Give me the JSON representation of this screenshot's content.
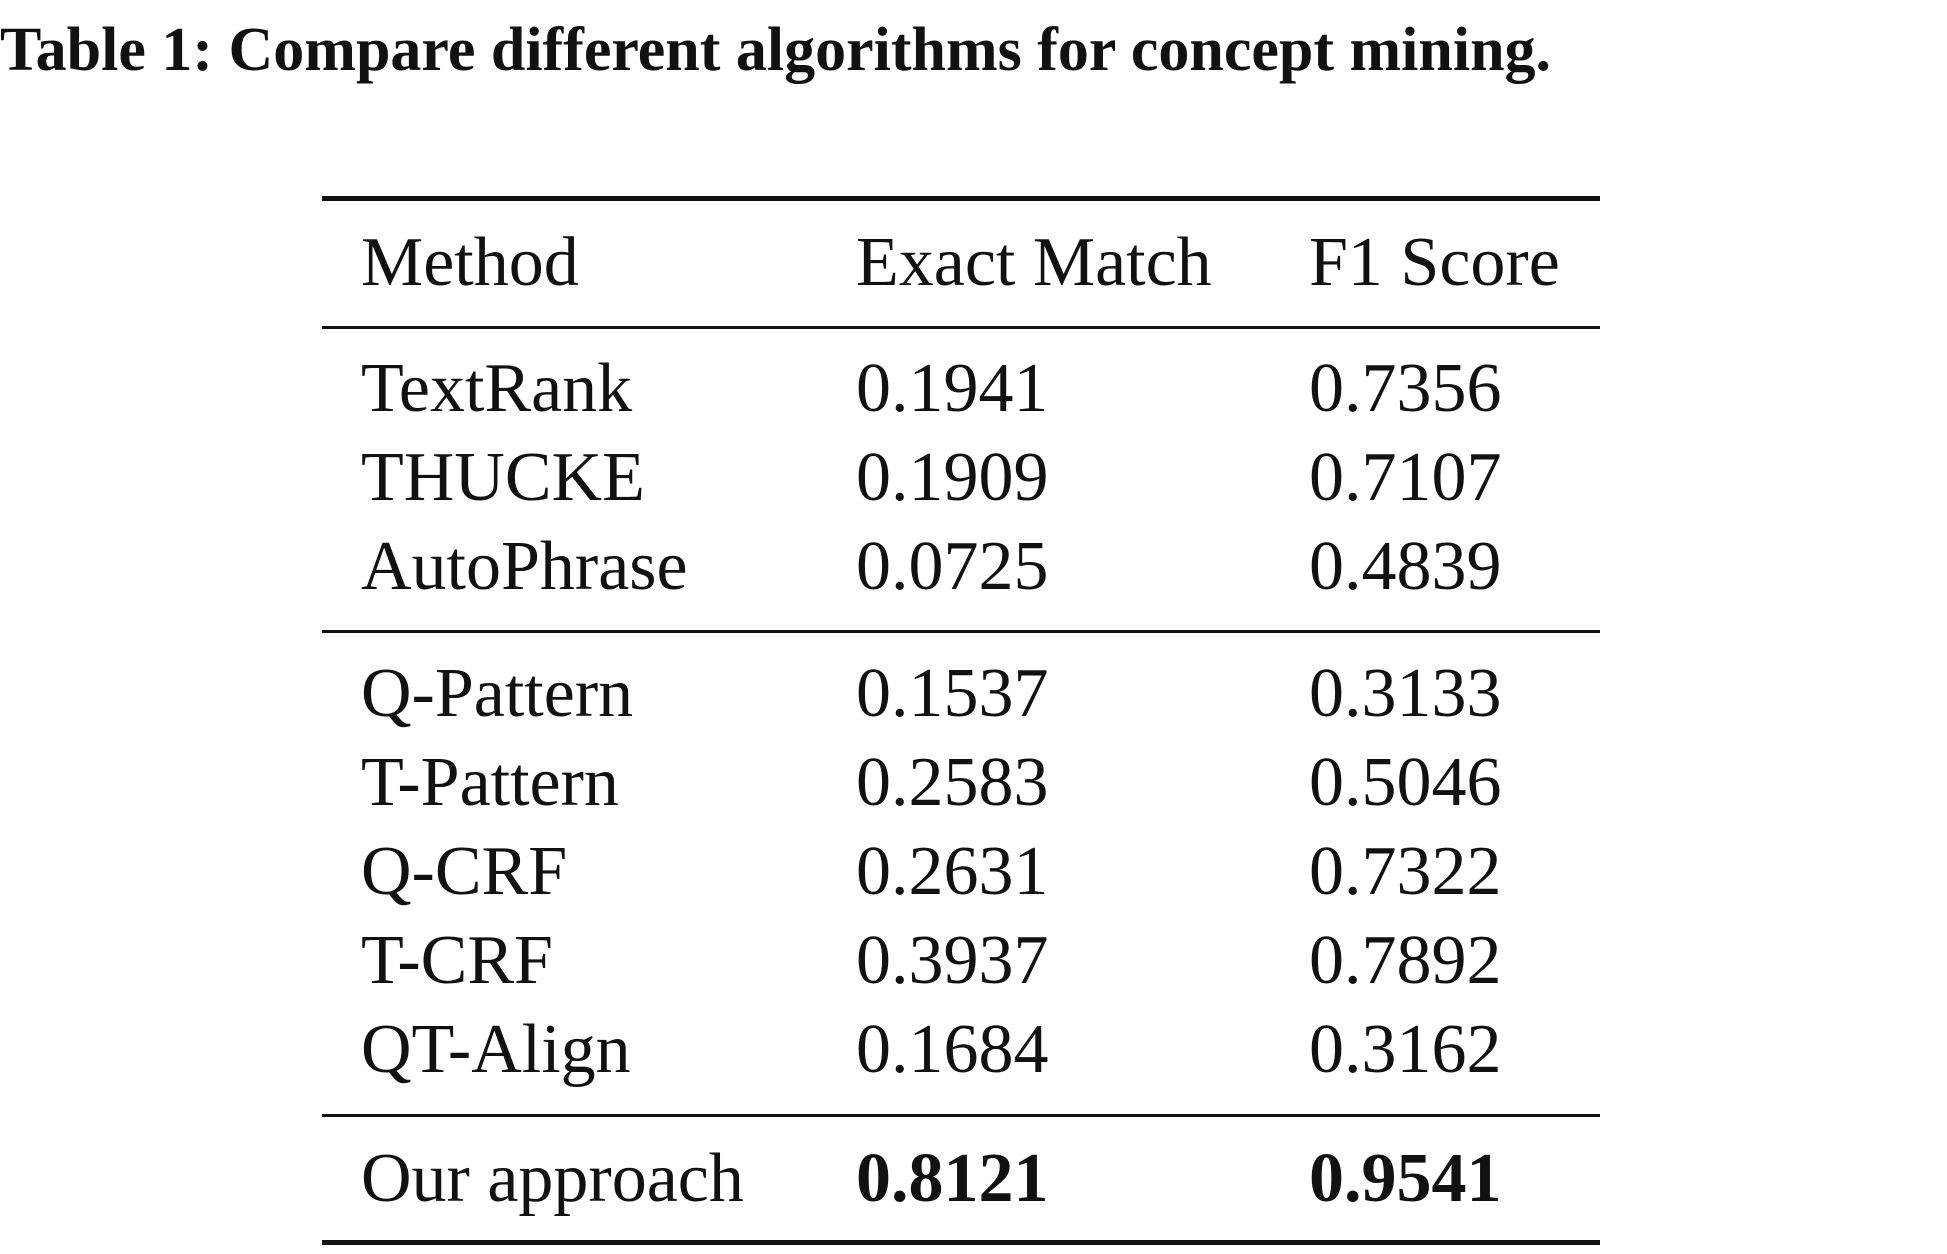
{
  "caption": "Table 1: Compare different algorithms for concept mining.",
  "table": {
    "header": {
      "method": "Method",
      "exact_match": "Exact Match",
      "f1_score": "F1 Score"
    },
    "groups": [
      [
        {
          "method": "TextRank",
          "exact_match": "0.1941",
          "f1_score": "0.7356"
        },
        {
          "method": "THUCKE",
          "exact_match": "0.1909",
          "f1_score": "0.7107"
        },
        {
          "method": "AutoPhrase",
          "exact_match": "0.0725",
          "f1_score": "0.4839"
        }
      ],
      [
        {
          "method": "Q-Pattern",
          "exact_match": "0.1537",
          "f1_score": "0.3133"
        },
        {
          "method": "T-Pattern",
          "exact_match": "0.2583",
          "f1_score": "0.5046"
        },
        {
          "method": "Q-CRF",
          "exact_match": "0.2631",
          "f1_score": "0.7322"
        },
        {
          "method": "T-CRF",
          "exact_match": "0.3937",
          "f1_score": "0.7892"
        },
        {
          "method": "QT-Align",
          "exact_match": "0.1684",
          "f1_score": "0.3162"
        }
      ],
      [
        {
          "method": "Our approach",
          "exact_match": "0.8121",
          "f1_score": "0.9541",
          "bold_values": true
        }
      ]
    ]
  }
}
